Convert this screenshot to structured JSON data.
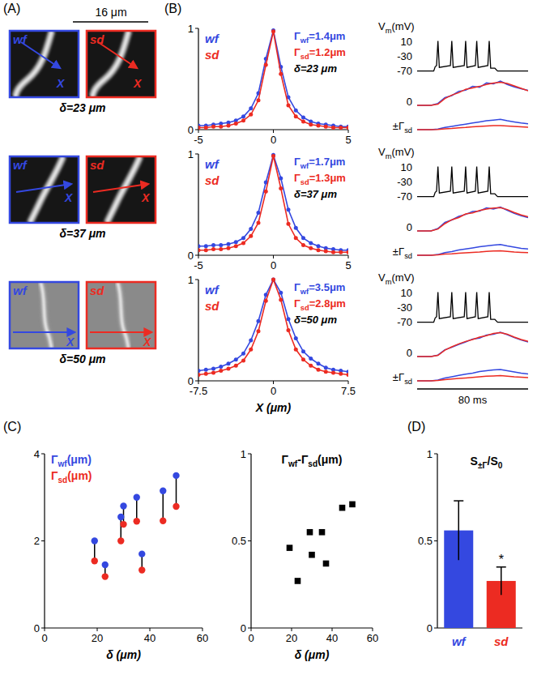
{
  "panel_labels": [
    "(A)",
    "(B)",
    "(C)",
    "(D)"
  ],
  "images": {
    "scale_bar": "16 μm",
    "axis_label": "X",
    "rows": [
      {
        "left": "wf",
        "right": "sd",
        "caption": "δ=23 μm"
      },
      {
        "left": "wf",
        "right": "sd",
        "caption": "δ=37 μm"
      },
      {
        "left": "wf",
        "right": "sd",
        "caption": "δ=50 μm"
      }
    ]
  },
  "chart_data": [
    {
      "type": "line",
      "x": [
        -5,
        -4.5,
        -4,
        -3.5,
        -3,
        -2.5,
        -2,
        -1.5,
        -1,
        -0.5,
        0,
        0.5,
        1,
        1.5,
        2,
        2.5,
        3,
        3.5,
        4,
        4.5,
        5
      ],
      "xlim": [
        -5,
        5
      ],
      "xticks": [
        -5,
        0,
        5
      ],
      "ylim": [
        0,
        1
      ],
      "yticks": [
        0,
        1
      ],
      "annotations": [
        "Γwf=1.4μm",
        "Γsd=1.2μm",
        "δ=23 μm"
      ],
      "series": [
        {
          "name": "wf",
          "color": "#3448e0",
          "marker": "circle",
          "line_style": "solid",
          "values": [
            0.04,
            0.04,
            0.05,
            0.06,
            0.07,
            0.09,
            0.13,
            0.21,
            0.36,
            0.7,
            0.98,
            0.62,
            0.32,
            0.19,
            0.12,
            0.08,
            0.06,
            0.05,
            0.04,
            0.03,
            0.03
          ]
        },
        {
          "name": "sd",
          "color": "#ec2b22",
          "marker": "circle",
          "line_style": "solid",
          "values": [
            0.02,
            0.02,
            0.03,
            0.03,
            0.04,
            0.06,
            0.09,
            0.15,
            0.29,
            0.64,
            0.97,
            0.55,
            0.24,
            0.13,
            0.08,
            0.05,
            0.04,
            0.03,
            0.02,
            0.02,
            0.02
          ]
        }
      ]
    },
    {
      "type": "line",
      "x": [
        0,
        12,
        13,
        14,
        15,
        16,
        24,
        25,
        26,
        34,
        35,
        36,
        42,
        43,
        44,
        51,
        52,
        53,
        56,
        58,
        80
      ],
      "xlim": [
        0,
        80
      ],
      "ylim": [
        -75,
        20
      ],
      "yticks": [
        10,
        -30,
        -70
      ],
      "y_label": "Vm(mV)",
      "series": [
        {
          "color": "#000000",
          "values": [
            -70,
            -70,
            -58,
            -55,
            12,
            -60,
            -55,
            12,
            -60,
            -55,
            12,
            -60,
            -55,
            12,
            -60,
            -55,
            12,
            -62,
            -62,
            -70,
            -70
          ]
        }
      ]
    },
    {
      "type": "line",
      "x": [
        0,
        5,
        10,
        15,
        20,
        25,
        30,
        35,
        40,
        45,
        50,
        55,
        60,
        65,
        70,
        75,
        80
      ],
      "xlim": [
        0,
        80
      ],
      "ylim": [
        0,
        1.1
      ],
      "rows": [
        {
          "label": "0",
          "series": [
            {
              "color": "#3448e0",
              "values": [
                0,
                0,
                0,
                0.08,
                0.32,
                0.4,
                0.58,
                0.62,
                0.78,
                0.74,
                0.92,
                0.88,
                1.0,
                0.86,
                0.76,
                0.68,
                0.62
              ]
            },
            {
              "color": "#ec2b22",
              "values": [
                0,
                0,
                0,
                0.05,
                0.28,
                0.42,
                0.52,
                0.66,
                0.72,
                0.78,
                0.86,
                0.92,
                0.95,
                0.9,
                0.8,
                0.7,
                0.6
              ]
            }
          ]
        },
        {
          "label": "±Γsd",
          "series": [
            {
              "color": "#3448e0",
              "values": [
                0,
                0,
                0,
                0.03,
                0.12,
                0.18,
                0.24,
                0.3,
                0.36,
                0.42,
                0.48,
                0.52,
                0.56,
                0.48,
                0.42,
                0.36,
                0.32
              ]
            },
            {
              "color": "#ec2b22",
              "values": [
                0,
                0,
                0,
                0.01,
                0.05,
                0.07,
                0.1,
                0.12,
                0.15,
                0.17,
                0.2,
                0.22,
                0.22,
                0.2,
                0.17,
                0.15,
                0.13
              ]
            }
          ]
        }
      ]
    },
    {
      "type": "line",
      "x": [
        -5,
        -4.5,
        -4,
        -3.5,
        -3,
        -2.5,
        -2,
        -1.5,
        -1,
        -0.5,
        0,
        0.5,
        1,
        1.5,
        2,
        2.5,
        3,
        3.5,
        4,
        4.5,
        5
      ],
      "xlim": [
        -5,
        5
      ],
      "xticks": [
        -5,
        0,
        5
      ],
      "ylim": [
        0,
        1
      ],
      "yticks": [
        0,
        1
      ],
      "annotations": [
        "Γwf=1.7μm",
        "Γsd=1.3μm",
        "δ=37 μm"
      ],
      "series": [
        {
          "name": "wf",
          "color": "#3448e0",
          "marker": "circle",
          "line_style": "solid",
          "values": [
            0.09,
            0.09,
            0.1,
            0.1,
            0.11,
            0.13,
            0.17,
            0.26,
            0.42,
            0.72,
            0.99,
            0.76,
            0.45,
            0.27,
            0.17,
            0.12,
            0.09,
            0.07,
            0.06,
            0.05,
            0.05
          ]
        },
        {
          "name": "sd",
          "color": "#ec2b22",
          "marker": "circle",
          "line_style": "solid",
          "values": [
            0.05,
            0.05,
            0.06,
            0.06,
            0.07,
            0.09,
            0.12,
            0.19,
            0.32,
            0.63,
            0.98,
            0.66,
            0.31,
            0.17,
            0.1,
            0.07,
            0.05,
            0.04,
            0.03,
            0.03,
            0.03
          ]
        }
      ]
    },
    {
      "type": "line",
      "x": [
        0,
        12,
        13,
        14,
        15,
        16,
        24,
        25,
        26,
        34,
        35,
        36,
        42,
        43,
        44,
        51,
        52,
        53,
        56,
        58,
        80
      ],
      "xlim": [
        0,
        80
      ],
      "ylim": [
        -75,
        20
      ],
      "yticks": [
        10,
        -30,
        -70
      ],
      "y_label": "Vm(mV)",
      "series": [
        {
          "color": "#000000",
          "values": [
            -70,
            -70,
            -58,
            -55,
            12,
            -60,
            -55,
            12,
            -60,
            -55,
            12,
            -60,
            -55,
            12,
            -60,
            -55,
            12,
            -62,
            -62,
            -70,
            -70
          ]
        }
      ]
    },
    {
      "type": "line",
      "x": [
        0,
        5,
        10,
        15,
        20,
        25,
        30,
        35,
        40,
        45,
        50,
        55,
        60,
        65,
        70,
        75,
        80
      ],
      "xlim": [
        0,
        80
      ],
      "ylim": [
        0,
        1.1
      ],
      "rows": [
        {
          "label": "0",
          "series": [
            {
              "color": "#3448e0",
              "values": [
                0,
                0,
                0,
                0.1,
                0.35,
                0.45,
                0.6,
                0.68,
                0.8,
                0.82,
                0.95,
                0.9,
                0.98,
                0.85,
                0.72,
                0.62,
                0.55
              ]
            },
            {
              "color": "#ec2b22",
              "values": [
                0,
                0,
                0,
                0.08,
                0.3,
                0.46,
                0.55,
                0.7,
                0.74,
                0.84,
                0.9,
                0.94,
                0.96,
                0.88,
                0.76,
                0.66,
                0.58
              ]
            }
          ]
        },
        {
          "label": "±Γsd",
          "series": [
            {
              "color": "#3448e0",
              "values": [
                0,
                0,
                0,
                0.04,
                0.14,
                0.2,
                0.28,
                0.34,
                0.4,
                0.46,
                0.5,
                0.55,
                0.58,
                0.5,
                0.44,
                0.38,
                0.34
              ]
            },
            {
              "color": "#ec2b22",
              "values": [
                0,
                0,
                0,
                0.02,
                0.06,
                0.08,
                0.11,
                0.13,
                0.16,
                0.18,
                0.21,
                0.23,
                0.24,
                0.21,
                0.18,
                0.16,
                0.14
              ]
            }
          ]
        }
      ]
    },
    {
      "type": "line",
      "x": [
        -7.5,
        -6.75,
        -6,
        -5.25,
        -4.5,
        -3.75,
        -3,
        -2.25,
        -1.5,
        -0.75,
        0,
        0.75,
        1.5,
        2.25,
        3,
        3.75,
        4.5,
        5.25,
        6,
        6.75,
        7.5
      ],
      "xlim": [
        -7.5,
        7.5
      ],
      "xticks": [
        -7.5,
        0,
        7.5
      ],
      "ylim": [
        0,
        1
      ],
      "yticks": [
        0,
        1
      ],
      "xlabel": "X (μm)",
      "annotations": [
        "Γwf=3.5μm",
        "Γsd=2.8μm",
        "δ=50 μm"
      ],
      "series": [
        {
          "name": "wf",
          "color": "#3448e0",
          "marker": "circle",
          "line_style": "solid",
          "values": [
            0.1,
            0.11,
            0.12,
            0.14,
            0.17,
            0.21,
            0.27,
            0.4,
            0.59,
            0.85,
            1.0,
            0.87,
            0.61,
            0.42,
            0.29,
            0.22,
            0.17,
            0.13,
            0.11,
            0.1,
            0.09
          ]
        },
        {
          "name": "sd",
          "color": "#ec2b22",
          "marker": "circle",
          "line_style": "solid",
          "values": [
            0.06,
            0.07,
            0.08,
            0.1,
            0.12,
            0.15,
            0.2,
            0.31,
            0.49,
            0.79,
            1.0,
            0.8,
            0.5,
            0.31,
            0.21,
            0.15,
            0.11,
            0.09,
            0.08,
            0.07,
            0.06
          ]
        }
      ]
    },
    {
      "type": "line",
      "x": [
        0,
        12,
        13,
        14,
        15,
        16,
        24,
        25,
        26,
        34,
        35,
        36,
        42,
        43,
        44,
        51,
        52,
        53,
        56,
        58,
        80
      ],
      "xlim": [
        0,
        80
      ],
      "ylim": [
        -75,
        20
      ],
      "yticks": [
        10,
        -30,
        -70
      ],
      "y_label": "Vm(mV)",
      "series": [
        {
          "color": "#000000",
          "values": [
            -70,
            -70,
            -58,
            -55,
            12,
            -60,
            -55,
            12,
            -60,
            -55,
            12,
            -60,
            -55,
            12,
            -60,
            -55,
            12,
            -62,
            -62,
            -70,
            -70
          ]
        }
      ]
    },
    {
      "type": "line",
      "x": [
        0,
        5,
        10,
        15,
        20,
        25,
        30,
        35,
        40,
        45,
        50,
        55,
        60,
        65,
        70,
        75,
        80
      ],
      "xlim": [
        0,
        80
      ],
      "ylim": [
        0,
        1.1
      ],
      "scale_bar": {
        "label": "80 ms",
        "value": 80
      },
      "rows": [
        {
          "label": "0",
          "series": [
            {
              "color": "#3448e0",
              "values": [
                0,
                0,
                0,
                0.06,
                0.28,
                0.38,
                0.5,
                0.6,
                0.72,
                0.76,
                0.88,
                0.92,
                1.0,
                0.9,
                0.78,
                0.68,
                0.6
              ]
            },
            {
              "color": "#ec2b22",
              "values": [
                0,
                0,
                0,
                0.05,
                0.26,
                0.4,
                0.52,
                0.62,
                0.7,
                0.8,
                0.86,
                0.95,
                0.98,
                0.92,
                0.8,
                0.7,
                0.62
              ]
            }
          ]
        },
        {
          "label": "±Γsd",
          "series": [
            {
              "color": "#3448e0",
              "values": [
                0,
                0,
                0,
                0.05,
                0.15,
                0.22,
                0.3,
                0.36,
                0.42,
                0.5,
                0.55,
                0.6,
                0.62,
                0.55,
                0.48,
                0.42,
                0.38
              ]
            },
            {
              "color": "#ec2b22",
              "values": [
                0,
                0,
                0,
                0.02,
                0.07,
                0.1,
                0.13,
                0.16,
                0.19,
                0.22,
                0.25,
                0.27,
                0.28,
                0.25,
                0.22,
                0.2,
                0.18
              ]
            }
          ]
        }
      ]
    },
    {
      "type": "scatter",
      "x": [
        19,
        23,
        29,
        30,
        35,
        37,
        45,
        50
      ],
      "xlim": [
        0,
        60
      ],
      "xticks": [
        0,
        20,
        40,
        60
      ],
      "ylim": [
        0,
        4
      ],
      "yticks": [
        0,
        2,
        4
      ],
      "xlabel": "δ (μm)",
      "series": [
        {
          "name": "Γwf(μm)",
          "color": "#3448e0",
          "marker": "circle",
          "values": [
            2.0,
            1.45,
            2.55,
            2.8,
            3.0,
            1.7,
            3.15,
            3.5
          ]
        },
        {
          "name": "Γsd(μm)",
          "color": "#ec2b22",
          "marker": "circle",
          "values": [
            1.54,
            1.18,
            2.0,
            2.38,
            2.45,
            1.33,
            2.46,
            2.79
          ]
        }
      ]
    },
    {
      "type": "scatter",
      "title": "Γwf-Γsd(μm)",
      "x": [
        19,
        23,
        29,
        30,
        35,
        37,
        45,
        50
      ],
      "xlim": [
        0,
        60
      ],
      "xticks": [
        0,
        20,
        40,
        60
      ],
      "ylim": [
        0,
        1
      ],
      "yticks": [
        0,
        0.5,
        1
      ],
      "xlabel": "δ (μm)",
      "series": [
        {
          "color": "#000000",
          "marker": "square",
          "values": [
            0.46,
            0.27,
            0.55,
            0.42,
            0.55,
            0.37,
            0.69,
            0.71
          ]
        }
      ]
    },
    {
      "type": "bar",
      "title": "S±Γ/S0",
      "categories": [
        "wf",
        "sd"
      ],
      "values": [
        0.56,
        0.27
      ],
      "errors": [
        0.17,
        0.08
      ],
      "colors": [
        "#3448e0",
        "#ec2b22"
      ],
      "ylim": [
        0,
        1
      ],
      "yticks": [
        0,
        0.5,
        1
      ],
      "annotations": [
        {
          "category": "sd",
          "text": "*"
        }
      ]
    }
  ]
}
